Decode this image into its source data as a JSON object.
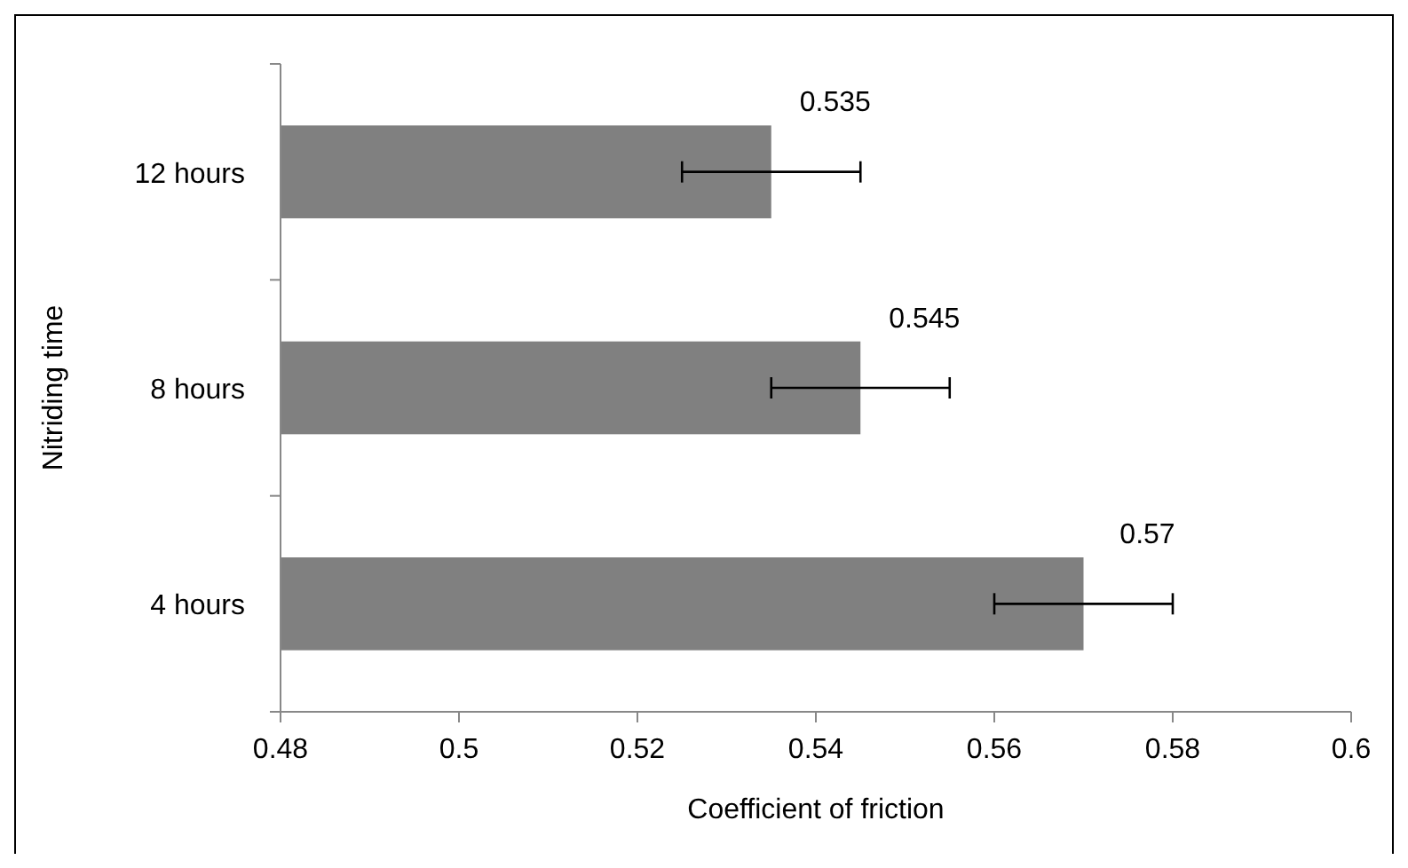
{
  "chart_data": {
    "type": "bar",
    "orientation": "horizontal",
    "xlabel": "Coefficient of friction",
    "ylabel": "Nitriding time",
    "categories": [
      "12 hours",
      "8 hours",
      "4 hours"
    ],
    "values": [
      0.535,
      0.545,
      0.57
    ],
    "errors": [
      0.01,
      0.01,
      0.01
    ],
    "color": "#808080",
    "data_labels": true,
    "xlim": [
      0.48,
      0.6
    ],
    "xticks": [
      0.48,
      0.5,
      0.52,
      0.54,
      0.56,
      0.58,
      {
        "value": 0.6,
        "label": "0.6"
      }
    ],
    "grid": false
  }
}
